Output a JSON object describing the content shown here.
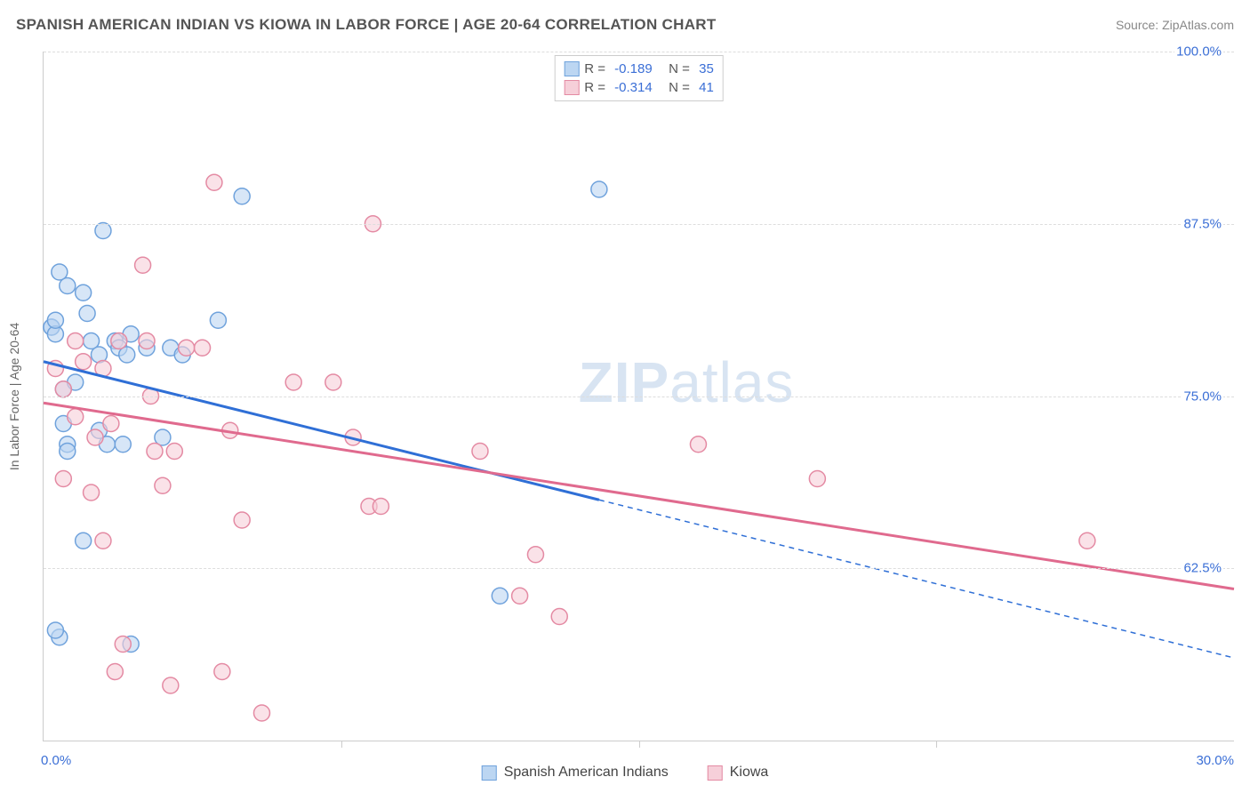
{
  "title": "SPANISH AMERICAN INDIAN VS KIOWA IN LABOR FORCE | AGE 20-64 CORRELATION CHART",
  "source": "Source: ZipAtlas.com",
  "ylabel": "In Labor Force | Age 20-64",
  "watermark_a": "ZIP",
  "watermark_b": "atlas",
  "colors": {
    "series1_fill": "#bcd6f2",
    "series1_stroke": "#6fa2dc",
    "series2_fill": "#f6cfd9",
    "series2_stroke": "#e48aa3",
    "trend1": "#2f6fd6",
    "trend2": "#e06a8e",
    "grid": "#dddddd",
    "axis": "#cccccc",
    "tick_text": "#3b6fd6",
    "title_text": "#555555"
  },
  "chart": {
    "type": "scatter",
    "xlim": [
      0,
      30
    ],
    "ylim": [
      50,
      100
    ],
    "y_ticks": [
      62.5,
      75.0,
      87.5,
      100.0
    ],
    "y_tick_labels": [
      "62.5%",
      "75.0%",
      "87.5%",
      "100.0%"
    ],
    "x_ticks": [
      0,
      14,
      30
    ],
    "x_tick_labels": {
      "left": "0.0%",
      "right": "30.0%"
    },
    "x_majors": [
      7.5,
      15.0,
      22.5
    ],
    "marker_radius": 9,
    "marker_opacity": 0.6,
    "trend_width": 3
  },
  "series": [
    {
      "key": "s1",
      "label": "Spanish American Indians",
      "R": "-0.189",
      "N": "35",
      "trend": {
        "x1": 0,
        "y1": 77.5,
        "x2": 30,
        "y2": 56.0,
        "solid_until_x": 14
      },
      "points": [
        {
          "x": 0.2,
          "y": 80.0
        },
        {
          "x": 0.2,
          "y": 80.0
        },
        {
          "x": 0.3,
          "y": 79.5
        },
        {
          "x": 0.3,
          "y": 80.5
        },
        {
          "x": 0.4,
          "y": 84.0
        },
        {
          "x": 0.6,
          "y": 83.0
        },
        {
          "x": 0.5,
          "y": 75.5
        },
        {
          "x": 0.5,
          "y": 73.0
        },
        {
          "x": 0.6,
          "y": 71.5
        },
        {
          "x": 0.6,
          "y": 71.0
        },
        {
          "x": 0.4,
          "y": 57.5
        },
        {
          "x": 0.3,
          "y": 58.0
        },
        {
          "x": 1.0,
          "y": 82.5
        },
        {
          "x": 1.1,
          "y": 81.0
        },
        {
          "x": 1.2,
          "y": 79.0
        },
        {
          "x": 1.4,
          "y": 78.0
        },
        {
          "x": 1.4,
          "y": 72.5
        },
        {
          "x": 1.6,
          "y": 71.5
        },
        {
          "x": 1.5,
          "y": 87.0
        },
        {
          "x": 1.0,
          "y": 64.5
        },
        {
          "x": 1.8,
          "y": 79.0
        },
        {
          "x": 1.9,
          "y": 78.5
        },
        {
          "x": 2.0,
          "y": 71.5
        },
        {
          "x": 2.1,
          "y": 78.0
        },
        {
          "x": 2.2,
          "y": 57.0
        },
        {
          "x": 2.2,
          "y": 79.5
        },
        {
          "x": 2.6,
          "y": 78.5
        },
        {
          "x": 3.2,
          "y": 78.5
        },
        {
          "x": 3.0,
          "y": 72.0
        },
        {
          "x": 3.5,
          "y": 78.0
        },
        {
          "x": 4.4,
          "y": 80.5
        },
        {
          "x": 5.0,
          "y": 89.5
        },
        {
          "x": 11.5,
          "y": 60.5
        },
        {
          "x": 14.0,
          "y": 90.0
        },
        {
          "x": 0.8,
          "y": 76.0
        }
      ]
    },
    {
      "key": "s2",
      "label": "Kiowa",
      "R": "-0.314",
      "N": "41",
      "trend": {
        "x1": 0,
        "y1": 74.5,
        "x2": 30,
        "y2": 61.0,
        "solid_until_x": 30
      },
      "points": [
        {
          "x": 0.3,
          "y": 77.0
        },
        {
          "x": 0.5,
          "y": 69.0
        },
        {
          "x": 0.5,
          "y": 75.5
        },
        {
          "x": 0.8,
          "y": 73.5
        },
        {
          "x": 1.0,
          "y": 77.5
        },
        {
          "x": 1.3,
          "y": 72.0
        },
        {
          "x": 1.5,
          "y": 64.5
        },
        {
          "x": 1.5,
          "y": 77.0
        },
        {
          "x": 1.7,
          "y": 73.0
        },
        {
          "x": 1.8,
          "y": 55.0
        },
        {
          "x": 2.0,
          "y": 57.0
        },
        {
          "x": 2.5,
          "y": 84.5
        },
        {
          "x": 2.6,
          "y": 79.0
        },
        {
          "x": 2.7,
          "y": 75.0
        },
        {
          "x": 2.8,
          "y": 71.0
        },
        {
          "x": 3.2,
          "y": 54.0
        },
        {
          "x": 3.3,
          "y": 71.0
        },
        {
          "x": 3.6,
          "y": 78.5
        },
        {
          "x": 4.3,
          "y": 90.5
        },
        {
          "x": 4.5,
          "y": 55.0
        },
        {
          "x": 4.7,
          "y": 72.5
        },
        {
          "x": 5.5,
          "y": 52.0
        },
        {
          "x": 6.3,
          "y": 76.0
        },
        {
          "x": 7.3,
          "y": 76.0
        },
        {
          "x": 7.8,
          "y": 72.0
        },
        {
          "x": 8.2,
          "y": 67.0
        },
        {
          "x": 8.3,
          "y": 87.5
        },
        {
          "x": 8.5,
          "y": 67.0
        },
        {
          "x": 11.0,
          "y": 71.0
        },
        {
          "x": 12.0,
          "y": 60.5
        },
        {
          "x": 12.4,
          "y": 63.5
        },
        {
          "x": 13.0,
          "y": 59.0
        },
        {
          "x": 16.5,
          "y": 71.5
        },
        {
          "x": 19.5,
          "y": 69.0
        },
        {
          "x": 26.3,
          "y": 64.5
        },
        {
          "x": 0.8,
          "y": 79.0
        },
        {
          "x": 1.2,
          "y": 68.0
        },
        {
          "x": 3.0,
          "y": 68.5
        },
        {
          "x": 4.0,
          "y": 78.5
        },
        {
          "x": 5.0,
          "y": 66.0
        },
        {
          "x": 1.9,
          "y": 79.0
        }
      ]
    }
  ]
}
